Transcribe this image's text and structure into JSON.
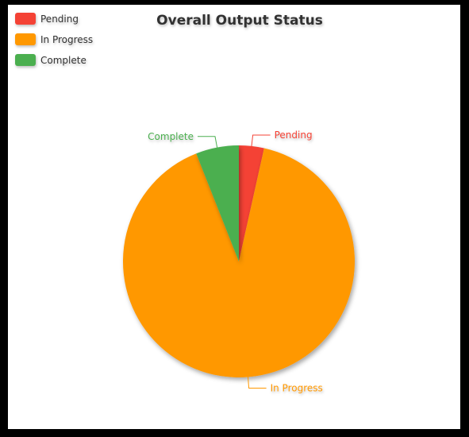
{
  "chart_data": {
    "type": "pie",
    "title": "Overall Output Status",
    "legend_position": "top-left",
    "categories": [
      "Pending",
      "In Progress",
      "Complete"
    ],
    "values": [
      3.5,
      90.5,
      6.0
    ],
    "colors": [
      "#f44336",
      "#ff9800",
      "#4caf50"
    ],
    "start_angle_deg": 0,
    "direction": "clockwise"
  }
}
